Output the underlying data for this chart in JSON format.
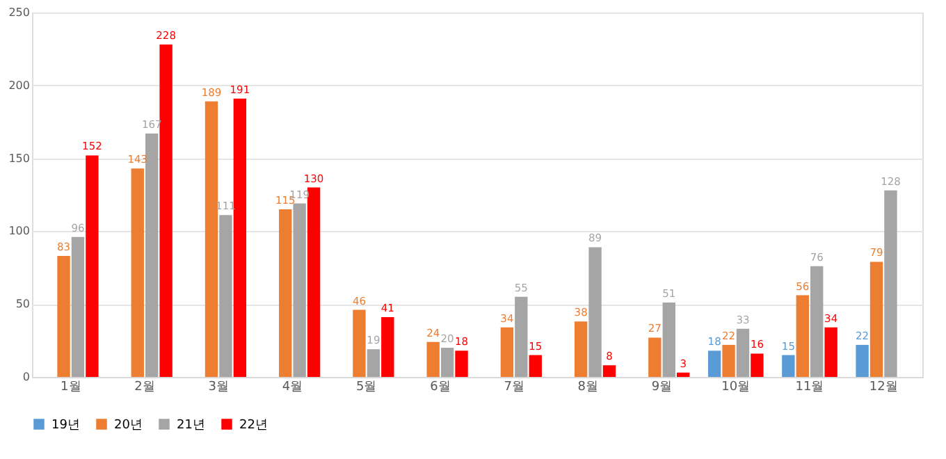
{
  "chart_data": {
    "type": "bar",
    "categories": [
      "1월",
      "2월",
      "3월",
      "4월",
      "5월",
      "6월",
      "7월",
      "8월",
      "9월",
      "10월",
      "11월",
      "12월"
    ],
    "series": [
      {
        "name": "19년",
        "color": "#5b9bd5",
        "values": [
          null,
          null,
          null,
          null,
          null,
          null,
          null,
          null,
          null,
          18,
          15,
          22
        ]
      },
      {
        "name": "20년",
        "color": "#ed7d31",
        "values": [
          83,
          143,
          189,
          115,
          46,
          24,
          34,
          38,
          27,
          22,
          56,
          79
        ]
      },
      {
        "name": "21년",
        "color": "#a5a5a5",
        "values": [
          96,
          167,
          111,
          119,
          19,
          20,
          55,
          89,
          51,
          33,
          76,
          128
        ]
      },
      {
        "name": "22년",
        "color": "#ff0000",
        "values": [
          152,
          228,
          191,
          130,
          41,
          18,
          15,
          8,
          3,
          16,
          34,
          null
        ]
      }
    ],
    "ylim": [
      0,
      250
    ],
    "yticks": [
      0,
      50,
      100,
      150,
      200,
      250
    ],
    "grid": "y",
    "legend": "bottom",
    "data_labels": true
  }
}
